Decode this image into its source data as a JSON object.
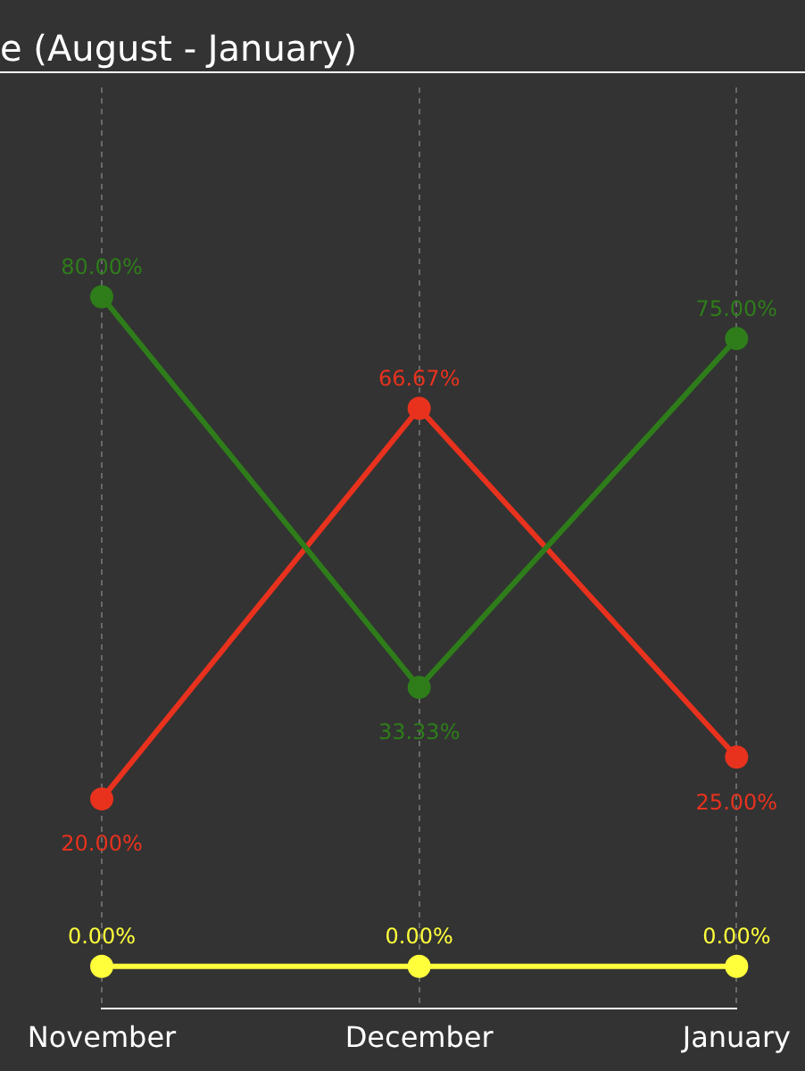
{
  "chart_data": {
    "type": "line",
    "title": "e (August - January)",
    "categories": [
      "November",
      "December",
      "January"
    ],
    "series": [
      {
        "color": "#2e7d1a",
        "values": [
          80,
          33.33,
          75
        ],
        "value_labels": [
          "80.00%",
          "33.33%",
          "75.00%"
        ]
      },
      {
        "color": "#e8321e",
        "values": [
          20,
          66.67,
          25
        ],
        "value_labels": [
          "20.00%",
          "66.67%",
          "25.00%"
        ]
      },
      {
        "color": "#ffff3c",
        "values": [
          0,
          0,
          0
        ],
        "value_labels": [
          "0.00%",
          "0.00%",
          "0.00%"
        ]
      }
    ],
    "ylim": [
      -5,
      105
    ],
    "grid": "x",
    "tick_labels": "x",
    "marker": "circle",
    "line_style": "solid",
    "legend": false
  }
}
